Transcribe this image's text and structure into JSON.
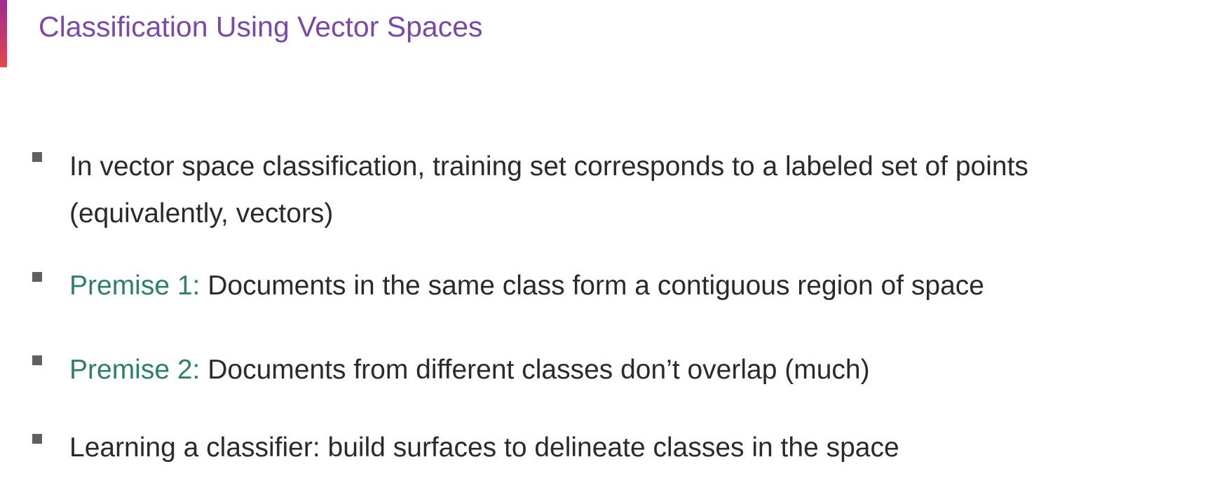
{
  "slide": {
    "title": "Classification Using Vector Spaces",
    "accent_colors": [
      "#9b2d8f",
      "#e5474b"
    ],
    "title_color": "#7a48a6",
    "premise_color": "#2e7e6c",
    "bullets": [
      {
        "line1": "In vector space classification, training set corresponds to a labeled set of points",
        "line2": "(equivalently, vectors)"
      },
      {
        "label": "Premise 1:",
        "text": " Documents in the same class form a contiguous region of space"
      },
      {
        "label": "Premise 2:",
        "text": " Documents from different classes don’t overlap (much)"
      },
      {
        "text": "Learning a classifier: build surfaces to delineate classes in the space"
      }
    ]
  }
}
